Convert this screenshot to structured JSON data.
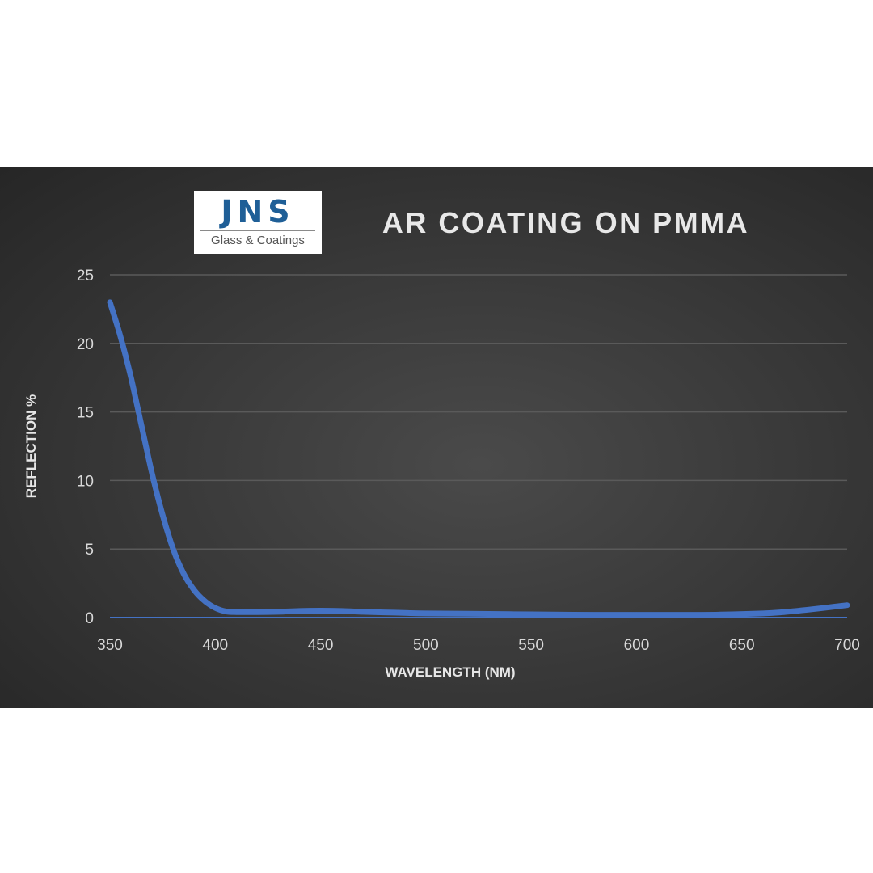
{
  "logo": {
    "mark": "JNS",
    "subtitle": "Glass & Coatings"
  },
  "colors": {
    "background": "#333333",
    "line": "#4472c4",
    "grid": "#5a5a5a",
    "text": "#d9d9d9"
  },
  "chart_data": {
    "type": "line",
    "title": "AR COATING ON PMMA",
    "xlabel": "WAVELENGTH (NM)",
    "ylabel": "REFLECTION %",
    "xlim": [
      350,
      700
    ],
    "ylim": [
      0,
      25
    ],
    "xticks": [
      350,
      400,
      450,
      500,
      550,
      600,
      650,
      700
    ],
    "yticks": [
      0,
      5,
      10,
      15,
      20,
      25
    ],
    "grid": true,
    "legend": "none",
    "series": [
      {
        "x": [
          350,
          355,
          360,
          365,
          370,
          375,
          380,
          385,
          390,
          395,
          400,
          405,
          410,
          420,
          430,
          440,
          450,
          460,
          470,
          480,
          490,
          500,
          520,
          540,
          560,
          580,
          600,
          620,
          640,
          660,
          670,
          680,
          690,
          700
        ],
        "y": [
          23,
          20.5,
          17.5,
          14,
          10.5,
          7.5,
          5,
          3.2,
          2,
          1.2,
          0.7,
          0.45,
          0.4,
          0.4,
          0.42,
          0.48,
          0.5,
          0.48,
          0.42,
          0.38,
          0.34,
          0.3,
          0.28,
          0.25,
          0.22,
          0.2,
          0.2,
          0.2,
          0.22,
          0.3,
          0.4,
          0.55,
          0.72,
          0.9
        ]
      }
    ]
  }
}
